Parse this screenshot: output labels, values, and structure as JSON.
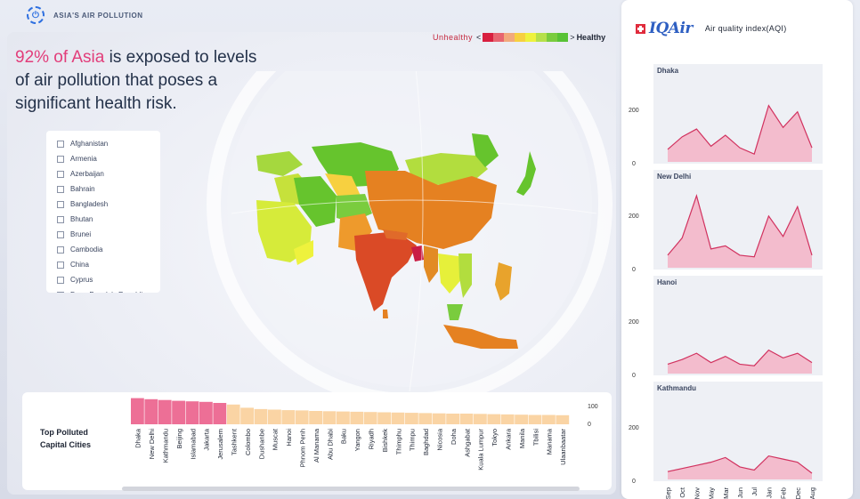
{
  "app": {
    "title": "ASIA'S AIR POLLUTION",
    "logo_glyph": "⏻"
  },
  "headline": {
    "highlight": "92% of Asia",
    "rest": " is exposed to levels of air pollution that poses a significant health risk."
  },
  "legend": {
    "unhealthy_label": "Unhealthy",
    "less_than": "<",
    "greater_than": ">",
    "healthy_label": "Healthy",
    "colors": [
      "#d81f3f",
      "#e76570",
      "#f2a97c",
      "#f7d040",
      "#eef23d",
      "#b6e04a",
      "#7acc3e",
      "#58c236"
    ]
  },
  "countries": [
    "Afghanistan",
    "Armenia",
    "Azerbaijan",
    "Bahrain",
    "Bangladesh",
    "Bhutan",
    "Brunei",
    "Cambodia",
    "China",
    "Cyprus",
    "Dem. People's Republic"
  ],
  "bar_panel": {
    "title_line1": "Top Polluted",
    "title_line2": "Capital Cities",
    "y_ticks": [
      "100",
      "0"
    ]
  },
  "chart_data": [
    {
      "type": "bar",
      "title": "Top Polluted Capital Cities",
      "categories": [
        "Dhaka",
        "New Delhi",
        "Kathmandu",
        "Beijing",
        "Islamabad",
        "Jakarta",
        "Jerusalem",
        "Tashkent",
        "Colombo",
        "Dushanbe",
        "Muscat",
        "Hanoi",
        "Phnom Penh",
        "Al Manama",
        "Abu Dhabi",
        "Baku",
        "Yangon",
        "Riyadh",
        "Bishkek",
        "Thimphu",
        "Thimpu",
        "Baghdad",
        "Nicosia",
        "Doha",
        "Ashgabat",
        "Kuala Lumpur",
        "Tokyo",
        "Ankara",
        "Manila",
        "Tbilisi",
        "Manama",
        "Ulaanbaatar"
      ],
      "values": [
        98,
        94,
        91,
        88,
        86,
        84,
        80,
        74,
        62,
        57,
        55,
        53,
        52,
        50,
        49,
        48,
        47,
        46,
        45,
        44,
        43,
        42,
        41,
        40,
        40,
        39,
        38,
        37,
        36,
        35,
        35,
        34
      ],
      "colors_top": "#ed6f96",
      "colors_rest": "#fad4a4",
      "highlight_count": 7,
      "ylim": [
        0,
        100
      ]
    },
    {
      "type": "area",
      "title": "Dhaka",
      "x": [
        "Sep",
        "Oct",
        "Nov",
        "May",
        "Mar",
        "Jun",
        "Jul",
        "Jan",
        "Feb",
        "Dec",
        "Aug"
      ],
      "values": [
        40,
        80,
        105,
        50,
        85,
        45,
        25,
        180,
        110,
        160,
        45
      ],
      "ylim": [
        0,
        250
      ],
      "y_ticks": [
        "200",
        "0"
      ]
    },
    {
      "type": "area",
      "title": "New Delhi",
      "x": [
        "Sep",
        "Oct",
        "Nov",
        "May",
        "Mar",
        "Jun",
        "Jul",
        "Jan",
        "Feb",
        "Dec",
        "Aug"
      ],
      "values": [
        40,
        95,
        230,
        60,
        70,
        40,
        35,
        165,
        100,
        195,
        40
      ],
      "ylim": [
        0,
        250
      ],
      "y_ticks": [
        "200",
        "0"
      ]
    },
    {
      "type": "area",
      "title": "Hanoi",
      "x": [
        "Sep",
        "Oct",
        "Nov",
        "May",
        "Mar",
        "Jun",
        "Jul",
        "Jan",
        "Feb",
        "Dec",
        "Aug"
      ],
      "values": [
        30,
        45,
        65,
        35,
        55,
        30,
        25,
        75,
        50,
        65,
        35
      ],
      "ylim": [
        0,
        250
      ],
      "y_ticks": [
        "200",
        "0"
      ]
    },
    {
      "type": "area",
      "title": "Kathmandu",
      "x": [
        "Sep",
        "Oct",
        "Nov",
        "May",
        "Mar",
        "Jun",
        "Jul",
        "Jan",
        "Feb",
        "Dec",
        "Aug"
      ],
      "values": [
        25,
        35,
        45,
        55,
        70,
        40,
        30,
        75,
        65,
        55,
        20
      ],
      "ylim": [
        0,
        250
      ],
      "y_ticks": [
        "200",
        "0"
      ]
    }
  ],
  "right_panel": {
    "brand": "IQAir",
    "subtitle": "Air quality index(AQI)",
    "line_color": "#d1325f",
    "fill_color": "#f3bccd"
  }
}
